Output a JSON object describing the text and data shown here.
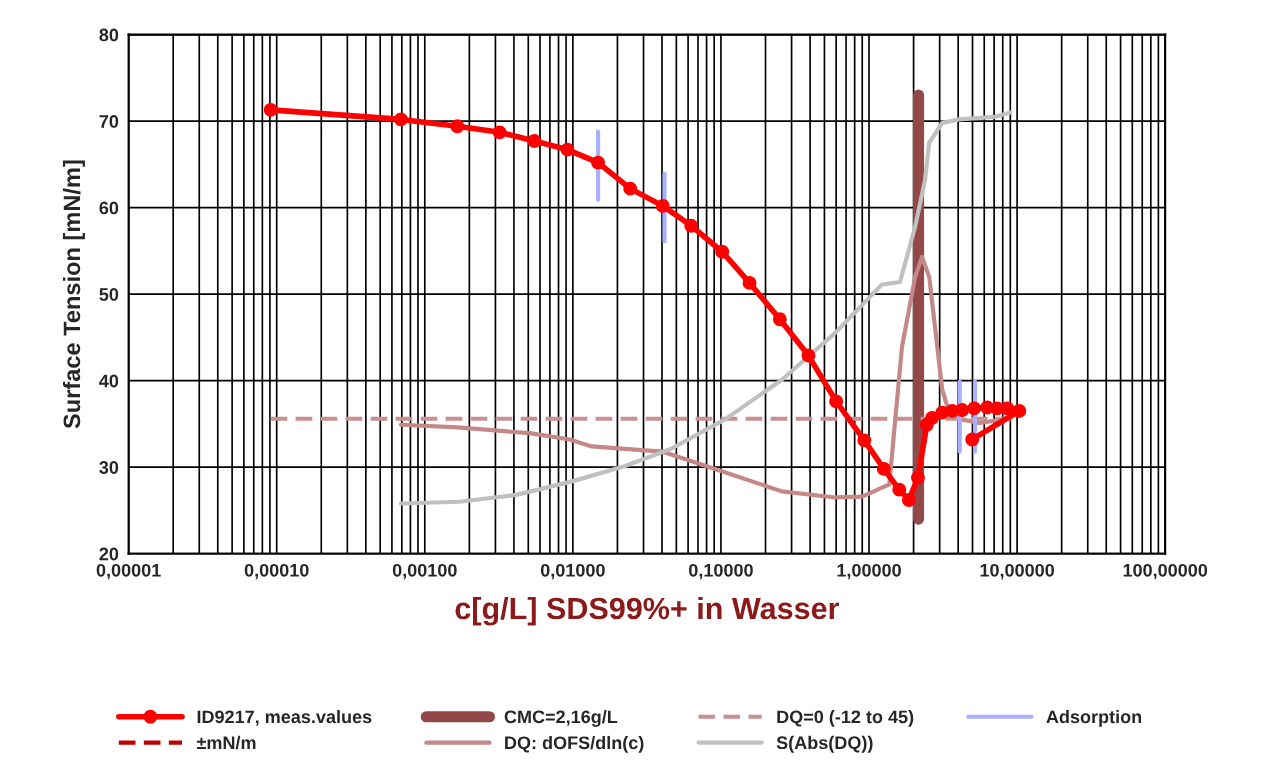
{
  "chart_data": {
    "type": "line",
    "xlabel": "c[g/L] SDS99%+ in Wasser",
    "ylabel": "Surface Tension [mN/m]",
    "log": "x",
    "grid": true,
    "legend": "bottom",
    "xlim": [
      1e-05,
      100
    ],
    "ylim": [
      20,
      80
    ],
    "xticks": [
      {
        "value": 1e-05,
        "label": "0,00001"
      },
      {
        "value": 0.0001,
        "label": "0,00010"
      },
      {
        "value": 0.001,
        "label": "0,00100"
      },
      {
        "value": 0.01,
        "label": "0,01000"
      },
      {
        "value": 0.1,
        "label": "0,10000"
      },
      {
        "value": 1,
        "label": "1,00000"
      },
      {
        "value": 10,
        "label": "10,00000"
      },
      {
        "value": 100,
        "label": "100,00000"
      }
    ],
    "yticks": [
      20,
      30,
      40,
      50,
      60,
      70,
      80
    ],
    "series": [
      {
        "name": "ID9217, meas.values",
        "color": "#ff0000",
        "marker": "circle",
        "x": [
          9.1e-05,
          0.00069,
          0.00166,
          0.0032,
          0.0055,
          0.0092,
          0.0148,
          0.0244,
          0.0405,
          0.063,
          0.102,
          0.156,
          0.25,
          0.39,
          0.6,
          0.93,
          1.26,
          1.6,
          1.86,
          2.14,
          2.46,
          2.67,
          3.12,
          3.65,
          4.26,
          5.13,
          6.28,
          7.34,
          8.59,
          10.35,
          4.98
        ],
        "values": [
          71.3,
          70.2,
          69.4,
          68.7,
          67.7,
          66.7,
          65.2,
          62.2,
          60.2,
          57.9,
          54.9,
          51.3,
          47.1,
          42.9,
          37.6,
          33.1,
          29.8,
          27.4,
          26.2,
          28.8,
          34.9,
          35.7,
          36.3,
          36.5,
          36.6,
          36.8,
          36.9,
          36.8,
          36.8,
          36.5,
          33.2
        ]
      },
      {
        "name": "±mN/m",
        "color": "#c00000",
        "line_style": "dashed"
      },
      {
        "name": "CMC=2,16g/L",
        "color": "#934848",
        "x": [
          2.16,
          2.16
        ],
        "values": [
          24,
          73
        ]
      },
      {
        "name": "DQ: dOFS/dln(c)",
        "color": "#c48888",
        "x": [
          0.00069,
          0.00168,
          0.00525,
          0.0095,
          0.0134,
          0.04,
          0.074,
          0.258,
          0.59,
          0.9,
          1.37,
          1.67,
          2.05,
          2.28,
          2.55,
          3.12,
          3.48,
          4.26,
          5.55,
          7.94
        ],
        "values": [
          34.9,
          34.6,
          33.9,
          33.2,
          32.4,
          31.8,
          30.3,
          27.2,
          26.5,
          26.6,
          28.0,
          43.9,
          52.0,
          54.3,
          52.0,
          39.0,
          36.3,
          35.5,
          35.1,
          35.5
        ]
      },
      {
        "name": "DQ=0 (-12 to 45)",
        "color": "#c89090",
        "line_style": "dashed",
        "x": [
          9.1e-05,
          10.35
        ],
        "values": [
          35.6,
          35.6
        ]
      },
      {
        "name": "S(Abs(DQ))",
        "color": "#c0c0c0",
        "x": [
          0.00069,
          0.00171,
          0.00415,
          0.0096,
          0.0223,
          0.0457,
          0.106,
          0.258,
          0.589,
          1.22,
          1.62,
          2.05,
          2.39,
          2.55,
          3.12,
          4.07,
          7.13,
          9.0
        ],
        "values": [
          25.8,
          26.0,
          26.8,
          28.3,
          30.1,
          32.1,
          35.5,
          40.1,
          45.5,
          51.1,
          51.4,
          57.8,
          63.2,
          67.5,
          69.8,
          70.2,
          70.5,
          71.0
        ]
      },
      {
        "name": "Adsorption",
        "color": "#aab0ff",
        "x": [
          0.0148,
          0.0148,
          null,
          0.0416,
          0.0416,
          null,
          4.1,
          4.1,
          null,
          5.2,
          5.2
        ],
        "values": [
          60.9,
          68.8,
          null,
          56.1,
          63.9,
          null,
          31.8,
          39.9,
          null,
          31.8,
          39.9
        ]
      }
    ]
  }
}
